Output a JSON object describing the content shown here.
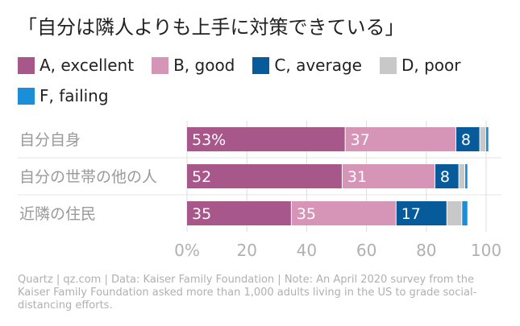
{
  "chart_data": {
    "type": "bar",
    "orientation": "horizontal",
    "stacked": true,
    "title": "「自分は隣人よりも上手に対策できている」",
    "categories": [
      "自分自身",
      "自分の世帯の他の人",
      "近隣の住民"
    ],
    "series": [
      {
        "name": "A, excellent",
        "color": "#a8578a",
        "values": [
          53,
          52,
          35
        ],
        "labels": [
          "53%",
          "52",
          "35"
        ]
      },
      {
        "name": "B, good",
        "color": "#d694b7",
        "values": [
          37,
          31,
          35
        ],
        "labels": [
          "37",
          "31",
          "35"
        ]
      },
      {
        "name": "C, average",
        "color": "#075b9a",
        "values": [
          8,
          8,
          17
        ],
        "labels": [
          "8",
          "8",
          "17"
        ]
      },
      {
        "name": "D, poor",
        "color": "#c8c8c8",
        "values": [
          2,
          2,
          5
        ],
        "labels": [
          "",
          "",
          ""
        ]
      },
      {
        "name": "F, failing",
        "color": "#1a8fd8",
        "values": [
          1,
          1,
          2
        ],
        "labels": [
          "",
          "",
          ""
        ]
      }
    ],
    "xlim": [
      0,
      100
    ],
    "xticks": [
      0,
      20,
      40,
      60,
      80,
      100
    ],
    "xtick_labels": [
      "0%",
      "20",
      "40",
      "60",
      "80",
      "100"
    ],
    "legend": "top",
    "grid": true
  },
  "footer": "Quartz | qz.com | Data: Kaiser Family Foundation | Note: An April 2020 survey from the Kaiser Family Foundation asked more than 1,000 adults living in the US to grade social-distancing efforts."
}
